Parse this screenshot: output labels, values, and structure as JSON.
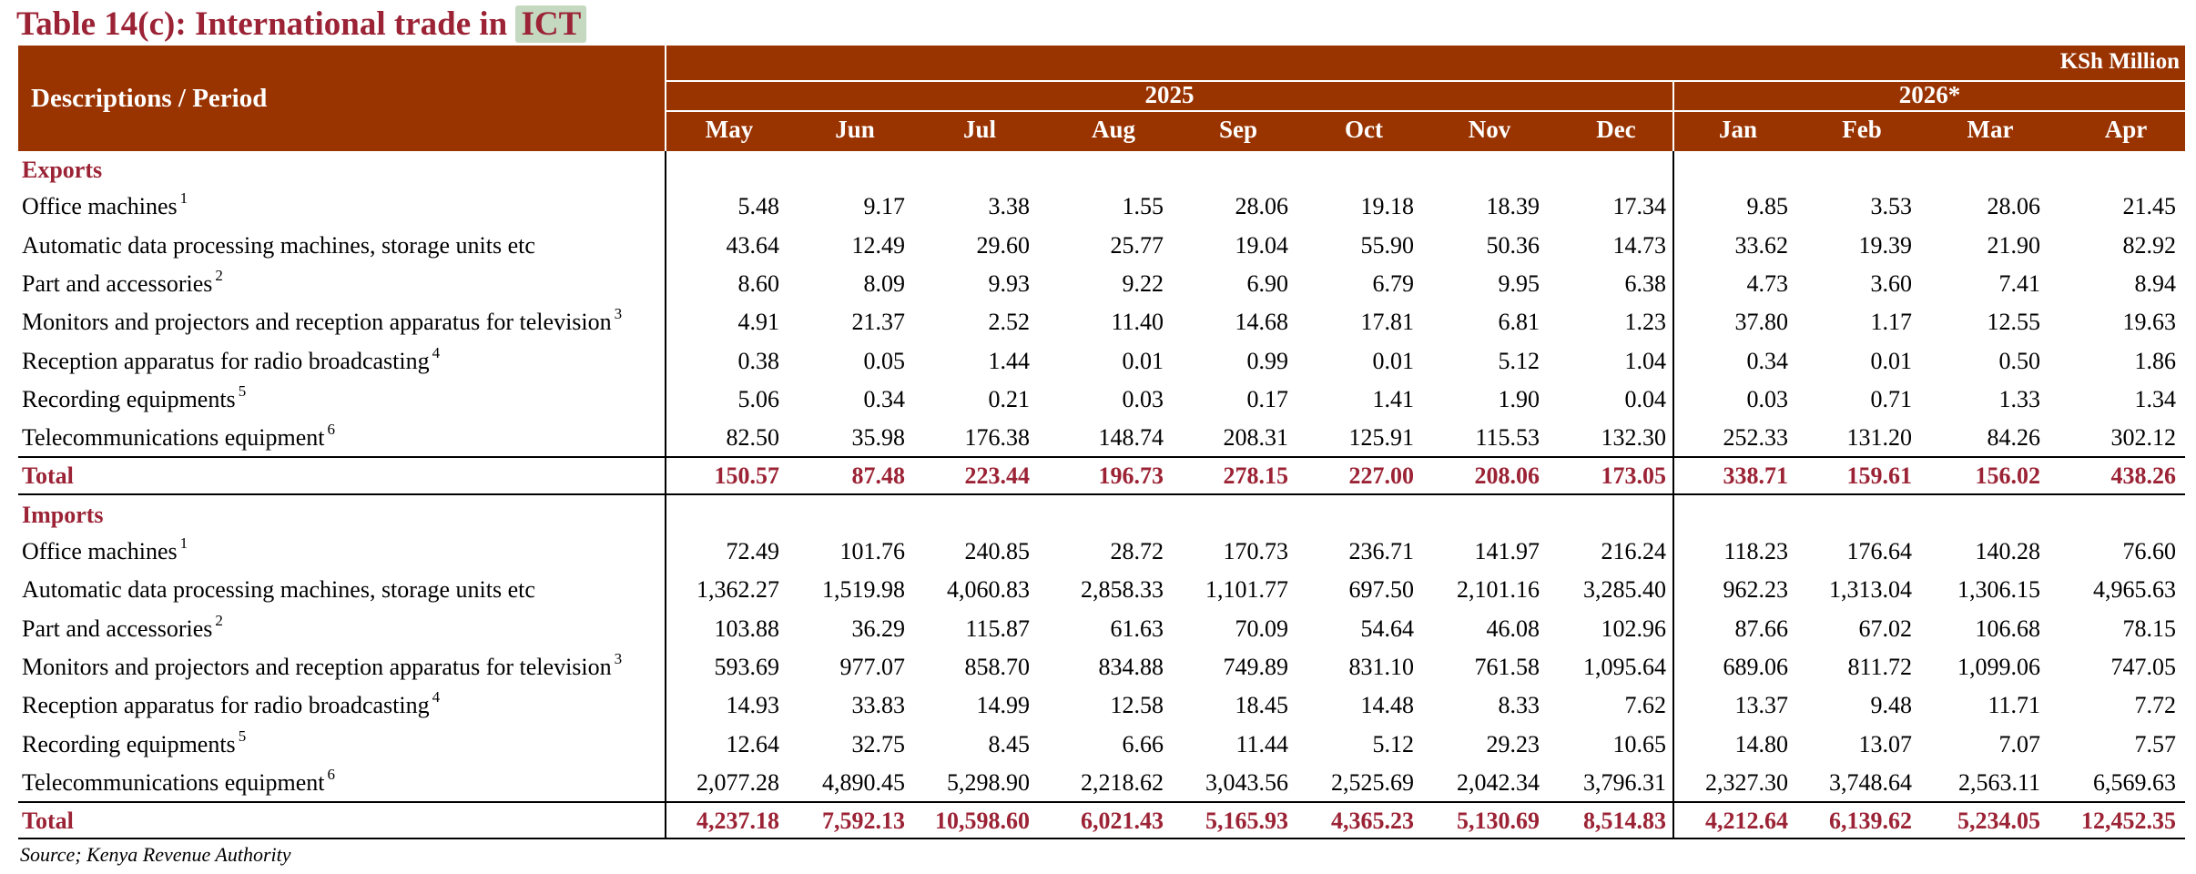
{
  "title": {
    "text": "Table 14(c): International trade in ",
    "highlight": "ICT"
  },
  "header": {
    "descriptions_label": "Descriptions / Period",
    "unit": "KSh Million",
    "year_2025": "2025",
    "year_2026": "2026*",
    "months": [
      "May",
      "Jun",
      "Jul",
      "Aug",
      "Sep",
      "Oct",
      "Nov",
      "Dec",
      "Jan",
      "Feb",
      "Mar",
      "Apr"
    ]
  },
  "sections": [
    {
      "label": "Exports",
      "rows": [
        {
          "desc": "Office machines",
          "note": "1",
          "values": [
            "5.48",
            "9.17",
            "3.38",
            "1.55",
            "28.06",
            "19.18",
            "18.39",
            "17.34",
            "9.85",
            "3.53",
            "28.06",
            "21.45"
          ]
        },
        {
          "desc": "Automatic data processing machines, storage units etc",
          "note": "",
          "values": [
            "43.64",
            "12.49",
            "29.60",
            "25.77",
            "19.04",
            "55.90",
            "50.36",
            "14.73",
            "33.62",
            "19.39",
            "21.90",
            "82.92"
          ]
        },
        {
          "desc": "Part and accessories",
          "note": "2",
          "values": [
            "8.60",
            "8.09",
            "9.93",
            "9.22",
            "6.90",
            "6.79",
            "9.95",
            "6.38",
            "4.73",
            "3.60",
            "7.41",
            "8.94"
          ]
        },
        {
          "desc": "Monitors and projectors and reception apparatus for television",
          "note": "3",
          "values": [
            "4.91",
            "21.37",
            "2.52",
            "11.40",
            "14.68",
            "17.81",
            "6.81",
            "1.23",
            "37.80",
            "1.17",
            "12.55",
            "19.63"
          ]
        },
        {
          "desc": "Reception apparatus for radio broadcasting",
          "note": "4",
          "values": [
            "0.38",
            "0.05",
            "1.44",
            "0.01",
            "0.99",
            "0.01",
            "5.12",
            "1.04",
            "0.34",
            "0.01",
            "0.50",
            "1.86"
          ]
        },
        {
          "desc": "Recording equipments",
          "note": "5",
          "values": [
            "5.06",
            "0.34",
            "0.21",
            "0.03",
            "0.17",
            "1.41",
            "1.90",
            "0.04",
            "0.03",
            "0.71",
            "1.33",
            "1.34"
          ]
        },
        {
          "desc": "Telecommunications equipment",
          "note": "6",
          "values": [
            "82.50",
            "35.98",
            "176.38",
            "148.74",
            "208.31",
            "125.91",
            "115.53",
            "132.30",
            "252.33",
            "131.20",
            "84.26",
            "302.12"
          ]
        }
      ],
      "total": {
        "label": "Total",
        "values": [
          "150.57",
          "87.48",
          "223.44",
          "196.73",
          "278.15",
          "227.00",
          "208.06",
          "173.05",
          "338.71",
          "159.61",
          "156.02",
          "438.26"
        ]
      }
    },
    {
      "label": "Imports",
      "rows": [
        {
          "desc": "Office machines",
          "note": "1",
          "values": [
            "72.49",
            "101.76",
            "240.85",
            "28.72",
            "170.73",
            "236.71",
            "141.97",
            "216.24",
            "118.23",
            "176.64",
            "140.28",
            "76.60"
          ]
        },
        {
          "desc": "Automatic data processing machines, storage units etc",
          "note": "",
          "values": [
            "1,362.27",
            "1,519.98",
            "4,060.83",
            "2,858.33",
            "1,101.77",
            "697.50",
            "2,101.16",
            "3,285.40",
            "962.23",
            "1,313.04",
            "1,306.15",
            "4,965.63"
          ]
        },
        {
          "desc": "Part and accessories",
          "note": "2",
          "values": [
            "103.88",
            "36.29",
            "115.87",
            "61.63",
            "70.09",
            "54.64",
            "46.08",
            "102.96",
            "87.66",
            "67.02",
            "106.68",
            "78.15"
          ]
        },
        {
          "desc": "Monitors and projectors and reception apparatus for television",
          "note": "3",
          "values": [
            "593.69",
            "977.07",
            "858.70",
            "834.88",
            "749.89",
            "831.10",
            "761.58",
            "1,095.64",
            "689.06",
            "811.72",
            "1,099.06",
            "747.05"
          ]
        },
        {
          "desc": "Reception apparatus for radio broadcasting",
          "note": "4",
          "values": [
            "14.93",
            "33.83",
            "14.99",
            "12.58",
            "18.45",
            "14.48",
            "8.33",
            "7.62",
            "13.37",
            "9.48",
            "11.71",
            "7.72"
          ]
        },
        {
          "desc": "Recording equipments",
          "note": "5",
          "values": [
            "12.64",
            "32.75",
            "8.45",
            "6.66",
            "11.44",
            "5.12",
            "29.23",
            "10.65",
            "14.80",
            "13.07",
            "7.07",
            "7.57"
          ]
        },
        {
          "desc": "Telecommunications equipment",
          "note": "6",
          "values": [
            "2,077.28",
            "4,890.45",
            "5,298.90",
            "2,218.62",
            "3,043.56",
            "2,525.69",
            "2,042.34",
            "3,796.31",
            "2,327.30",
            "3,748.64",
            "2,563.11",
            "6,569.63"
          ]
        }
      ],
      "total": {
        "label": "Total",
        "values": [
          "4,237.18",
          "7,592.13",
          "10,598.60",
          "6,021.43",
          "5,165.93",
          "4,365.23",
          "5,130.69",
          "8,514.83",
          "4,212.64",
          "6,139.62",
          "5,234.05",
          "12,452.35"
        ]
      }
    }
  ],
  "source": "Source; Kenya Revenue Authority",
  "colors": {
    "header_bg": "#993300",
    "accent": "#9b2335",
    "highlight": "#c5d9c0"
  }
}
